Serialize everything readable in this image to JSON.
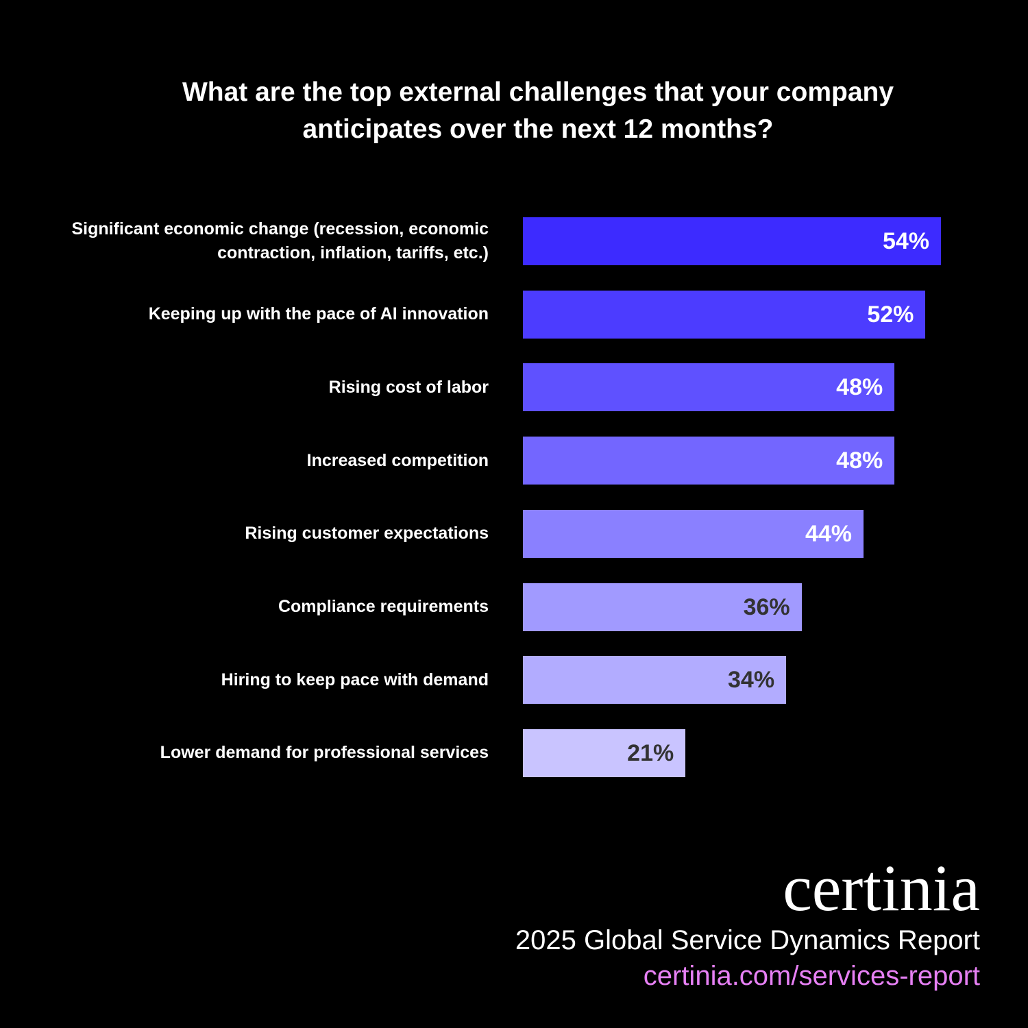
{
  "chart_data": {
    "type": "bar",
    "orientation": "horizontal",
    "title": "What are the top external challenges that your company anticipates over the next 12 months?",
    "categories": [
      "Significant economic change (recession, economic contraction, inflation, tariffs, etc.)",
      "Keeping up with the pace of AI innovation",
      "Rising cost of labor",
      "Increased competition",
      "Rising customer expectations",
      "Compliance requirements",
      "Hiring to keep pace with demand",
      "Lower demand for professional services"
    ],
    "values": [
      54,
      52,
      48,
      48,
      44,
      36,
      34,
      21
    ],
    "value_labels": [
      "54%",
      "52%",
      "48%",
      "48%",
      "44%",
      "36%",
      "34%",
      "21%"
    ],
    "colors": [
      "#3d2bff",
      "#4c3cff",
      "#5f51ff",
      "#7366ff",
      "#8a80ff",
      "#a19aff",
      "#b2acff",
      "#c9c4ff"
    ],
    "label_colors": [
      "#ffffff",
      "#ffffff",
      "#ffffff",
      "#ffffff",
      "#ffffff",
      "#333333",
      "#333333",
      "#333333"
    ]
  },
  "footer": {
    "logo": "certinia",
    "report": "2025 Global Service Dynamics Report",
    "url": "certinia.com/services-report"
  }
}
